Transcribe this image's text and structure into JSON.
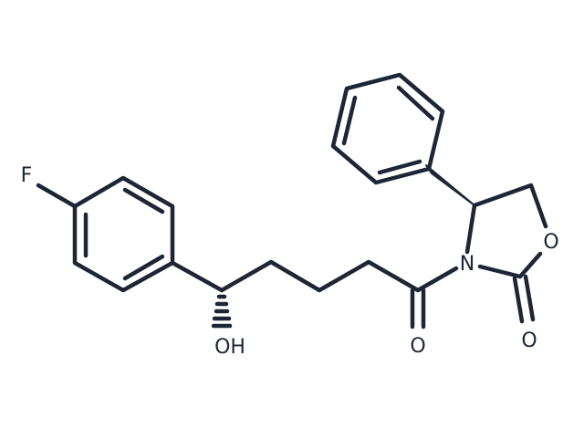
{
  "atoms": [
    {
      "label": "F"
    },
    {
      "label": "OH"
    },
    {
      "label": "O"
    },
    {
      "label": "N"
    },
    {
      "label": "O"
    },
    {
      "label": "O"
    }
  ]
}
